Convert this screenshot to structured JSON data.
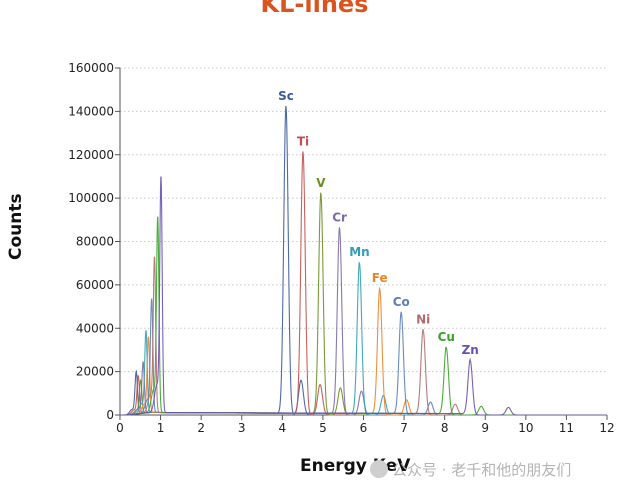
{
  "chart_data": {
    "type": "line",
    "title": "KL-lines",
    "xlabel": "Energy KeV",
    "ylabel": "Counts",
    "xlim": [
      0,
      12
    ],
    "ylim": [
      0,
      160000
    ],
    "x_ticks": [
      "0",
      "1",
      "2",
      "3",
      "4",
      "5",
      "6",
      "7",
      "8",
      "9",
      "10",
      "11",
      "12"
    ],
    "y_ticks": [
      "0",
      "20000",
      "40000",
      "60000",
      "80000",
      "100000",
      "120000",
      "140000",
      "160000"
    ],
    "grid": "horizontal dotted",
    "legend": "none (peaks labeled directly)",
    "colors": {
      "title": "#d9541e",
      "Sc": "#3b5a9a",
      "Ti": "#c0504d",
      "V": "#6b8e23",
      "Cr": "#7b6aa6",
      "Mn": "#2e9fb5",
      "Fe": "#e8852a",
      "Co": "#5a7fb5",
      "Ni": "#b06c6c",
      "Cu": "#3aa22a",
      "Zn": "#6a4fae",
      "low_energy": "#9a9a9a"
    },
    "series": [
      {
        "name": "Sc",
        "ka_energy": 4.09,
        "ka_counts": 142000,
        "kb_energy": 4.46,
        "kb_counts": 16000,
        "l_energy": 0.4,
        "l_counts": 19000
      },
      {
        "name": "Ti",
        "ka_energy": 4.51,
        "ka_counts": 121000,
        "kb_energy": 4.93,
        "kb_counts": 14000,
        "l_energy": 0.45,
        "l_counts": 17000
      },
      {
        "name": "V",
        "ka_energy": 4.95,
        "ka_counts": 102000,
        "kb_energy": 5.43,
        "kb_counts": 12500,
        "l_energy": 0.51,
        "l_counts": 15000
      },
      {
        "name": "Cr",
        "ka_energy": 5.41,
        "ka_counts": 86000,
        "kb_energy": 5.95,
        "kb_counts": 11000,
        "l_energy": 0.57,
        "l_counts": 23000
      },
      {
        "name": "Mn",
        "ka_energy": 5.9,
        "ka_counts": 70000,
        "kb_energy": 6.49,
        "kb_counts": 9000,
        "l_energy": 0.64,
        "l_counts": 37000
      },
      {
        "name": "Fe",
        "ka_energy": 6.4,
        "ka_counts": 58000,
        "kb_energy": 7.06,
        "kb_counts": 7000,
        "l_energy": 0.7,
        "l_counts": 34000
      },
      {
        "name": "Co",
        "ka_energy": 6.93,
        "ka_counts": 47000,
        "kb_energy": 7.65,
        "kb_counts": 6000,
        "l_energy": 0.78,
        "l_counts": 51000
      },
      {
        "name": "Ni",
        "ka_energy": 7.47,
        "ka_counts": 39000,
        "kb_energy": 8.26,
        "kb_counts": 5000,
        "l_energy": 0.85,
        "l_counts": 70000
      },
      {
        "name": "Cu",
        "ka_energy": 8.04,
        "ka_counts": 31000,
        "kb_energy": 8.9,
        "kb_counts": 4000,
        "l_energy": 0.93,
        "l_counts": 88000
      },
      {
        "name": "Zn",
        "ka_energy": 8.63,
        "ka_counts": 25000,
        "kb_energy": 9.57,
        "kb_counts": 3500,
        "l_energy": 1.01,
        "l_counts": 106000
      }
    ]
  },
  "watermark": "公众号 · 老千和他的朋友们"
}
